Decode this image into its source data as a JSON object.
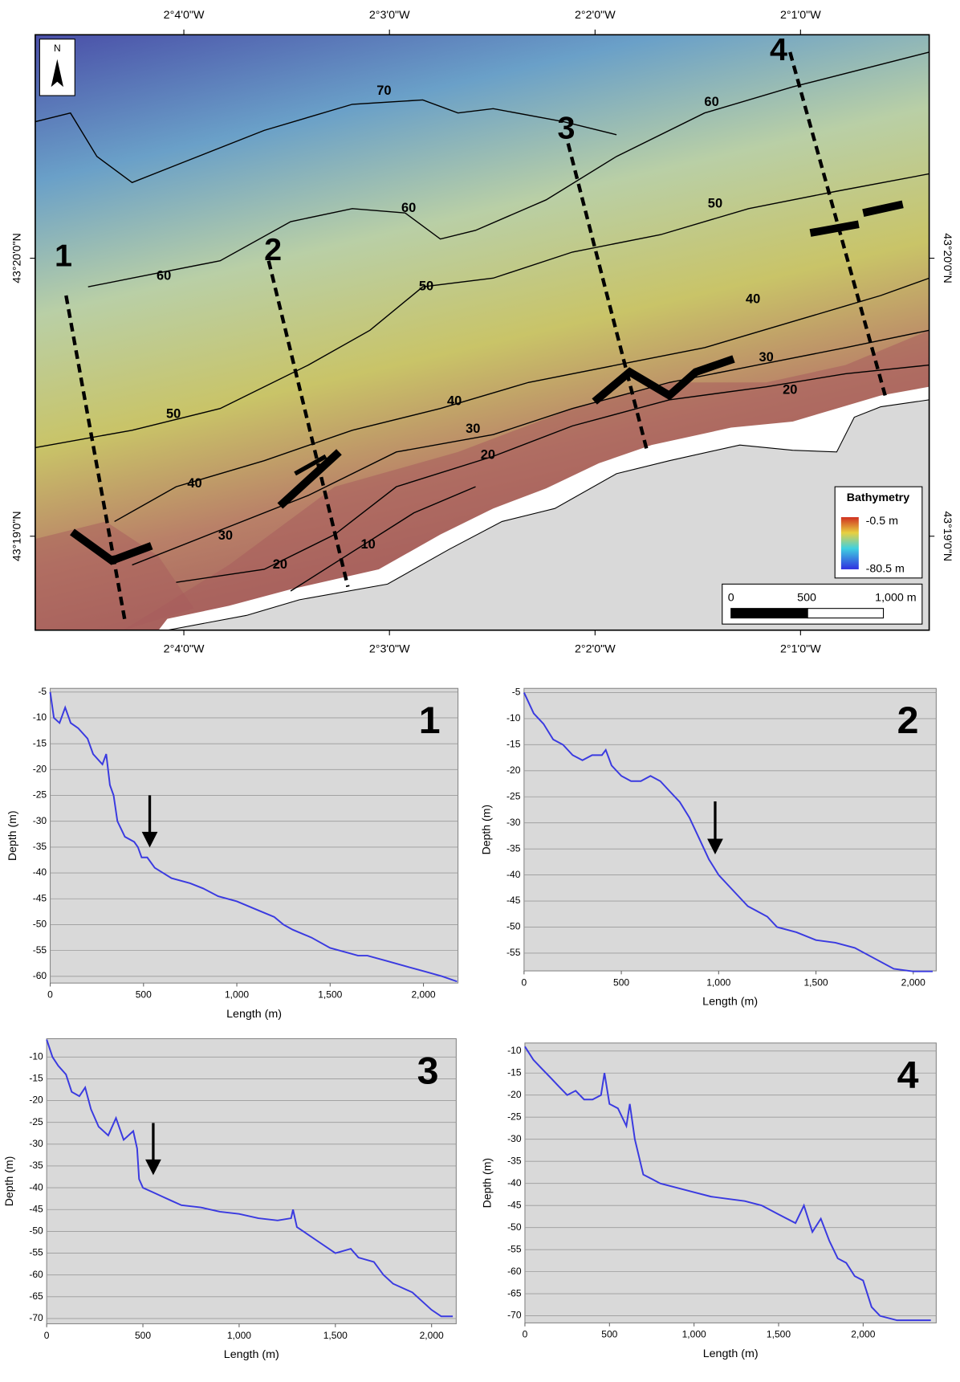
{
  "chart_data": [
    {
      "type": "map",
      "xlim": [
        -2.07872,
        -2.00624
      ],
      "ylim": [
        43.31104,
        43.34672
      ],
      "xticks": [
        {
          "value": -2.06667,
          "label": "2°4'0\"W"
        },
        {
          "value": -2.05,
          "label": "2°3'0\"W"
        },
        {
          "value": -2.03333,
          "label": "2°2'0\"W"
        },
        {
          "value": -2.01667,
          "label": "2°1'0\"W"
        }
      ],
      "yticks": [
        {
          "value": 43.33333,
          "label": "43°20'0\"N"
        },
        {
          "value": 43.31667,
          "label": "43°19'0\"N"
        }
      ],
      "north": "N",
      "contour_labels": [
        70,
        60,
        60,
        60,
        50,
        50,
        50,
        40,
        40,
        40,
        30,
        30,
        30,
        20,
        20,
        20,
        10
      ],
      "profile_labels": [
        "1",
        "2",
        "3",
        "4"
      ],
      "legend": {
        "title": "Bathymetry",
        "max_label": "-0.5 m",
        "min_label": "-80.5 m"
      },
      "scale_bar": [
        "0",
        "500",
        "1,000 m"
      ]
    },
    {
      "type": "line",
      "label": "1",
      "xlabel": "Length (m)",
      "ylabel": "Depth (m)",
      "color": "#3a3ae0",
      "grid": true,
      "xlim": [
        0,
        2185
      ],
      "ylim": [
        -61.3,
        -4.3
      ],
      "xticks": [
        0,
        500,
        {
          "value": 1000,
          "label": "1,000"
        },
        {
          "value": 1500,
          "label": "1,500"
        },
        {
          "value": 2000,
          "label": "2,000"
        }
      ],
      "yticks": [
        -5,
        -10,
        -15,
        -20,
        -25,
        -30,
        -35,
        -40,
        -45,
        -50,
        -55,
        -60
      ],
      "x": [
        0,
        20,
        50,
        80,
        110,
        150,
        200,
        230,
        280,
        300,
        320,
        340,
        360,
        400,
        450,
        470,
        490,
        520,
        560,
        650,
        750,
        820,
        900,
        1000,
        1100,
        1200,
        1250,
        1300,
        1400,
        1500,
        1600,
        1650,
        1700,
        1800,
        1900,
        2000,
        2100,
        2180
      ],
      "values": [
        -5,
        -10,
        -11,
        -8,
        -11,
        -12,
        -14,
        -17,
        -19,
        -17,
        -23,
        -25,
        -30,
        -33,
        -34,
        -35,
        -37,
        -37,
        -39,
        -41,
        -42,
        -43,
        -44.5,
        -45.5,
        -47,
        -48.5,
        -50,
        -51,
        -52.5,
        -54.5,
        -55.5,
        -56,
        -56,
        -57,
        -58,
        -59,
        -60,
        -61
      ]
    },
    {
      "type": "line",
      "label": "2",
      "xlabel": "Length (m)",
      "ylabel": "Depth (m)",
      "color": "#3a3ae0",
      "grid": true,
      "xlim": [
        0,
        2118
      ],
      "ylim": [
        -58.4,
        -4.2
      ],
      "xticks": [
        0,
        500,
        {
          "value": 1000,
          "label": "1,000"
        },
        {
          "value": 1500,
          "label": "1,500"
        },
        {
          "value": 2000,
          "label": "2,000"
        }
      ],
      "yticks": [
        -5,
        -10,
        -15,
        -20,
        -25,
        -30,
        -35,
        -40,
        -45,
        -50,
        -55
      ],
      "x": [
        0,
        50,
        100,
        150,
        200,
        250,
        300,
        350,
        400,
        420,
        450,
        500,
        550,
        600,
        650,
        700,
        750,
        800,
        850,
        900,
        950,
        1000,
        1050,
        1100,
        1150,
        1200,
        1250,
        1300,
        1400,
        1500,
        1600,
        1700,
        1800,
        1900,
        2000,
        2100
      ],
      "values": [
        -5,
        -9,
        -11,
        -14,
        -15,
        -17,
        -18,
        -17,
        -17,
        -16,
        -19,
        -21,
        -22,
        -22,
        -21,
        -22,
        -24,
        -26,
        -29,
        -33,
        -37,
        -40,
        -42,
        -44,
        -46,
        -47,
        -48,
        -50,
        -51,
        -52.5,
        -53,
        -54,
        -56,
        -58,
        -58.5,
        -58.5
      ]
    },
    {
      "type": "line",
      "label": "3",
      "xlabel": "Length (m)",
      "ylabel": "Depth (m)",
      "color": "#3a3ae0",
      "grid": true,
      "xlim": [
        0,
        2128
      ],
      "ylim": [
        -71.2,
        -5.8
      ],
      "xticks": [
        0,
        500,
        {
          "value": 1000,
          "label": "1,000"
        },
        {
          "value": 1500,
          "label": "1,500"
        },
        {
          "value": 2000,
          "label": "2,000"
        }
      ],
      "yticks": [
        -10,
        -15,
        -20,
        -25,
        -30,
        -35,
        -40,
        -45,
        -50,
        -55,
        -60,
        -65,
        -70
      ],
      "x": [
        0,
        30,
        60,
        100,
        130,
        170,
        200,
        230,
        270,
        320,
        360,
        400,
        450,
        470,
        480,
        500,
        550,
        600,
        650,
        700,
        800,
        900,
        1000,
        1100,
        1200,
        1270,
        1280,
        1300,
        1400,
        1500,
        1580,
        1620,
        1700,
        1750,
        1800,
        1900,
        2000,
        2050,
        2110
      ],
      "values": [
        -6,
        -10,
        -12,
        -14,
        -18,
        -19,
        -17,
        -22,
        -26,
        -28,
        -24,
        -29,
        -27,
        -31,
        -38,
        -40,
        -41,
        -42,
        -43,
        -44,
        -44.5,
        -45.5,
        -46,
        -47,
        -47.5,
        -47,
        -45,
        -49,
        -52,
        -55,
        -54,
        -56,
        -57,
        -60,
        -62,
        -64,
        -68,
        -69.5,
        -69.5
      ]
    },
    {
      "type": "line",
      "label": "4",
      "xlabel": "Length (m)",
      "ylabel": "Depth (m)",
      "color": "#3a3ae0",
      "grid": true,
      "xlim": [
        0,
        2432
      ],
      "ylim": [
        -71.6,
        -8.2
      ],
      "xticks": [
        0,
        500,
        {
          "value": 1000,
          "label": "1,000"
        },
        {
          "value": 1500,
          "label": "1,500"
        },
        {
          "value": 2000,
          "label": "2,000"
        }
      ],
      "yticks": [
        -10,
        -15,
        -20,
        -25,
        -30,
        -35,
        -40,
        -45,
        -50,
        -55,
        -60,
        -65,
        -70
      ],
      "x": [
        0,
        50,
        100,
        150,
        200,
        250,
        300,
        350,
        400,
        450,
        470,
        500,
        550,
        600,
        620,
        650,
        700,
        750,
        800,
        900,
        1000,
        1100,
        1200,
        1300,
        1400,
        1500,
        1600,
        1650,
        1700,
        1750,
        1800,
        1850,
        1900,
        1950,
        2000,
        2050,
        2100,
        2200,
        2300,
        2400
      ],
      "values": [
        -9,
        -12,
        -14,
        -16,
        -18,
        -20,
        -19,
        -21,
        -21,
        -20,
        -15,
        -22,
        -23,
        -27,
        -22,
        -30,
        -38,
        -39,
        -40,
        -41,
        -42,
        -43,
        -43.5,
        -44,
        -45,
        -47,
        -49,
        -45,
        -51,
        -48,
        -53,
        -57,
        -58,
        -61,
        -62,
        -68,
        -70,
        -71,
        -71,
        -71
      ]
    }
  ]
}
